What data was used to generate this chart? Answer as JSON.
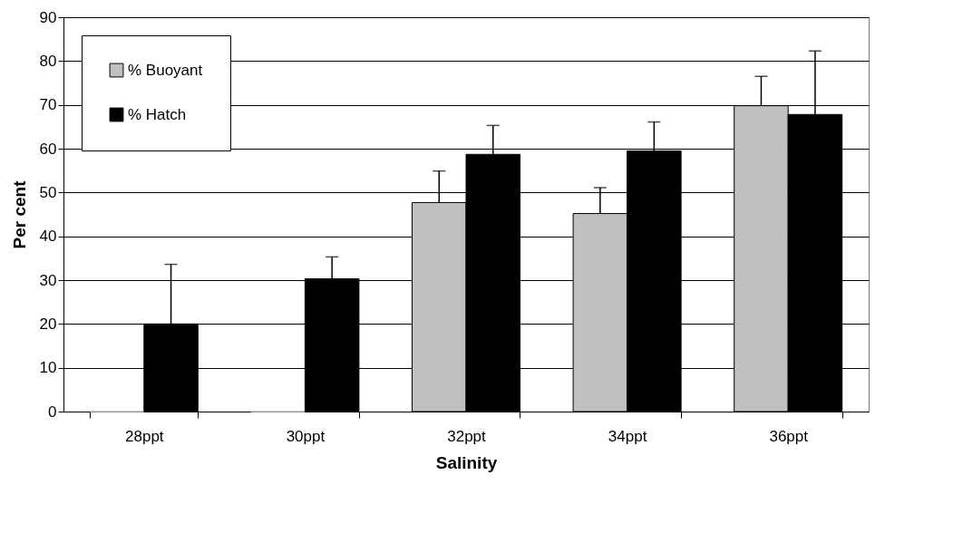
{
  "chart_data": {
    "type": "bar",
    "xlabel": "Salinity",
    "ylabel": "Per cent",
    "categories": [
      "28ppt",
      "30ppt",
      "32ppt",
      "34ppt",
      "36ppt"
    ],
    "series": [
      {
        "name": "% Buoyant",
        "color": "#c0c0c0",
        "values": [
          0,
          0,
          47.7,
          45.2,
          69.8
        ],
        "errors": [
          null,
          null,
          [
            47.7,
            54.9
          ],
          [
            45.2,
            51.1
          ],
          [
            69.8,
            76.5
          ]
        ]
      },
      {
        "name": "% Hatch",
        "color": "#000000",
        "values": [
          20,
          30.3,
          58.7,
          59.5,
          67.8
        ],
        "errors": [
          [
            20,
            33.6
          ],
          [
            30.3,
            35.3
          ],
          [
            58.7,
            65.3
          ],
          [
            59.5,
            66.1
          ],
          [
            67.8,
            82.3
          ]
        ]
      }
    ],
    "ylim": [
      0,
      90
    ],
    "yticks": [
      0,
      10,
      20,
      30,
      40,
      50,
      60,
      70,
      80,
      90
    ],
    "grid": "y",
    "legend": "top left"
  }
}
